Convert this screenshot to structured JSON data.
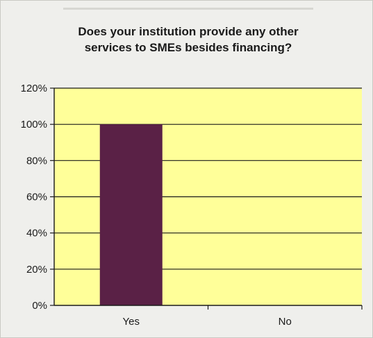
{
  "chart_data": {
    "type": "bar",
    "title_lines": [
      "Does your institution provide any other",
      "services to SMEs besides financing?"
    ],
    "categories": [
      "Yes",
      "No"
    ],
    "values": [
      100,
      0
    ],
    "ylim": [
      0,
      120
    ],
    "yticks": [
      "0%",
      "20%",
      "40%",
      "60%",
      "80%",
      "100%",
      "120%"
    ],
    "grid": true,
    "legend": "none",
    "colors": {
      "bar": "#5a2146",
      "plot_background": "#ffff99",
      "gridline": "#1a1a1a"
    }
  }
}
